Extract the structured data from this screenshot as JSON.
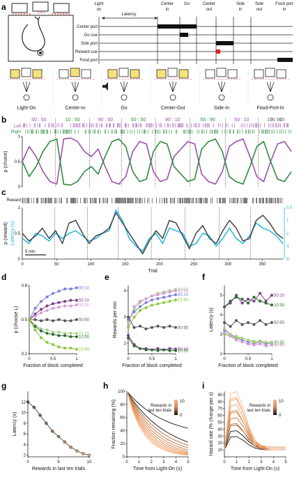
{
  "panels": {
    "a": "a",
    "b": "b",
    "c": "c",
    "d": "d",
    "e": "e",
    "f": "f",
    "g": "g",
    "h": "h",
    "i": "i"
  },
  "timeline": {
    "events": [
      "Light\non",
      "Latency",
      "Center\nin",
      "Go",
      "Center\nout",
      "Side\nin",
      "Side\nout",
      "Food port\nin"
    ],
    "rows": [
      "Center port",
      "Go cue",
      "Side port",
      "Reward cue",
      "Food port"
    ],
    "reward_color": "#e0211f"
  },
  "task_steps": [
    "Light-On",
    "Center-In",
    "Go",
    "Center-Out",
    "Side-In",
    "Food-Port-In"
  ],
  "panel_b": {
    "block_labels": [
      "50 : 50",
      "10 : 50",
      "90 : 50",
      "50 : 50",
      "90 : 10",
      "50 : 90",
      "50 : 10",
      "10 : 90",
      "90 : 10"
    ],
    "left_label": "Left",
    "right_label": "Right",
    "ylabel": "p (choice)",
    "yticks": [
      "1",
      "0.5",
      "0"
    ],
    "left_color": "#9c4fb0",
    "right_color": "#2e8b3e"
  },
  "panel_c": {
    "reward_label": "Reward",
    "ylabel_left": "p (reward)",
    "ylabel_right": "Latency (s)",
    "yticks_left": [
      "1",
      "0.5",
      "0"
    ],
    "yticks_right": [
      "0.5",
      "1",
      "2",
      "4",
      "8"
    ],
    "xlabel": "Trial",
    "xticks": [
      "0",
      "50",
      "100",
      "150",
      "200",
      "250",
      "300",
      "350"
    ],
    "scalebar": "5 min",
    "latency_color": "#1fb7e0",
    "preward_color": "#444444"
  },
  "chart_data": [
    {
      "panel": "d",
      "type": "line",
      "xlabel": "Fraction of block completed",
      "ylabel": "p (choose L)",
      "x": [
        0,
        0.125,
        0.25,
        0.375,
        0.5,
        0.625,
        0.75,
        0.875,
        1
      ],
      "ylim": [
        0.2,
        0.8
      ],
      "yticks": [
        "0.2",
        "0.5",
        "0.8"
      ],
      "xticks": [
        "0",
        "0.5",
        "1"
      ],
      "series": [
        {
          "name": "90:10",
          "color": "#7b7fd6",
          "values": [
            0.5,
            0.6,
            0.66,
            0.7,
            0.73,
            0.75,
            0.77,
            0.77,
            0.78
          ]
        },
        {
          "name": "50:10",
          "color": "#7a3d8c",
          "values": [
            0.5,
            0.55,
            0.59,
            0.62,
            0.64,
            0.65,
            0.66,
            0.67,
            0.67
          ]
        },
        {
          "name": "90:50",
          "color": "#d79ad9",
          "values": [
            0.5,
            0.53,
            0.56,
            0.58,
            0.6,
            0.61,
            0.62,
            0.62,
            0.63
          ]
        },
        {
          "name": "50:50",
          "color": "#555555",
          "values": [
            0.5,
            0.5,
            0.49,
            0.5,
            0.49,
            0.5,
            0.49,
            0.49,
            0.5
          ]
        },
        {
          "name": "50:90",
          "color": "#a8cf8a",
          "values": [
            0.5,
            0.45,
            0.42,
            0.41,
            0.39,
            0.39,
            0.38,
            0.38,
            0.38
          ]
        },
        {
          "name": "10:50",
          "color": "#2e6b2e",
          "values": [
            0.5,
            0.44,
            0.4,
            0.38,
            0.37,
            0.36,
            0.36,
            0.35,
            0.35
          ]
        },
        {
          "name": "10:90",
          "color": "#8cc63f",
          "values": [
            0.5,
            0.41,
            0.34,
            0.3,
            0.28,
            0.26,
            0.25,
            0.25,
            0.24
          ]
        }
      ]
    },
    {
      "panel": "e",
      "type": "line",
      "xlabel": "Fraction of block completed",
      "ylabel": "Rewards per min",
      "x": [
        0,
        0.125,
        0.25,
        0.375,
        0.5,
        0.625,
        0.75,
        0.875,
        1
      ],
      "ylim": [
        1.6,
        4.2
      ],
      "yticks": [
        "2",
        "3",
        "4"
      ],
      "xticks": [
        "0",
        "0.5",
        "1"
      ],
      "series": [
        {
          "name": "50:90",
          "color": "#a8cf8a",
          "values": [
            2.8,
            3.3,
            3.55,
            3.7,
            3.8,
            3.9,
            3.95,
            4.0,
            4.05
          ]
        },
        {
          "name": "90:50",
          "color": "#d79ad9",
          "values": [
            2.7,
            3.4,
            3.6,
            3.7,
            3.8,
            3.85,
            3.9,
            3.95,
            4.0
          ]
        },
        {
          "name": "90:10",
          "color": "#7b7fd6",
          "values": [
            2.9,
            3.2,
            3.4,
            3.55,
            3.65,
            3.7,
            3.75,
            3.8,
            3.85
          ]
        },
        {
          "name": "10:90",
          "color": "#8cc63f",
          "values": [
            2.6,
            3.0,
            3.25,
            3.35,
            3.45,
            3.5,
            3.55,
            3.6,
            3.65
          ]
        },
        {
          "name": "50:50",
          "color": "#555555",
          "values": [
            3.0,
            2.6,
            2.65,
            2.55,
            2.6,
            2.65,
            2.6,
            2.65,
            2.6
          ]
        },
        {
          "name": "50:10",
          "color": "#7a3d8c",
          "values": [
            2.3,
            1.95,
            1.8,
            1.8,
            1.75,
            1.8,
            1.75,
            1.8,
            1.78
          ]
        },
        {
          "name": "10:50",
          "color": "#2e6b2e",
          "values": [
            2.2,
            1.9,
            1.8,
            1.75,
            1.75,
            1.72,
            1.75,
            1.72,
            1.72
          ]
        }
      ]
    },
    {
      "panel": "f",
      "type": "line",
      "xlabel": "Fraction of block completed",
      "ylabel": "Latency (s)",
      "x": [
        0,
        0.125,
        0.25,
        0.375,
        0.5,
        0.625,
        0.75,
        0.875,
        1
      ],
      "ylim": [
        2,
        5.5
      ],
      "yticks": [
        "2",
        "3",
        "4",
        "5"
      ],
      "xticks": [
        "0",
        "0.5",
        "1"
      ],
      "series": [
        {
          "name": "50:10",
          "color": "#7a3d8c",
          "values": [
            4.4,
            4.6,
            5.0,
            4.6,
            4.8,
            4.7,
            5.1,
            4.7,
            5.0
          ]
        },
        {
          "name": "10:50",
          "color": "#2e6b2e",
          "values": [
            4.4,
            4.7,
            4.9,
            4.8,
            4.6,
            4.9,
            4.7,
            4.6,
            4.5
          ]
        },
        {
          "name": "50:50",
          "color": "#555555",
          "values": [
            3.6,
            3.4,
            3.7,
            3.5,
            3.6,
            3.5,
            3.7,
            3.5,
            3.6
          ]
        },
        {
          "name": "90:10",
          "color": "#7b7fd6",
          "values": [
            3.2,
            3.0,
            2.8,
            2.7,
            2.6,
            2.5,
            2.6,
            2.5,
            2.6
          ]
        },
        {
          "name": "10:90",
          "color": "#8cc63f",
          "values": [
            3.0,
            2.9,
            2.8,
            2.8,
            2.7,
            2.6,
            2.65,
            2.6,
            2.5
          ]
        },
        {
          "name": "50:90",
          "color": "#a8cf8a",
          "values": [
            3.3,
            3.0,
            2.9,
            2.8,
            2.7,
            2.65,
            2.6,
            2.6,
            2.6
          ]
        },
        {
          "name": "90:50",
          "color": "#d79ad9",
          "values": [
            3.1,
            2.9,
            2.7,
            2.6,
            2.5,
            2.45,
            2.5,
            2.4,
            2.45
          ]
        }
      ]
    },
    {
      "panel": "g",
      "type": "line",
      "xlabel": "Rewards in last ten trials",
      "ylabel": "Latency (s)",
      "x": [
        0,
        1,
        2,
        3,
        4,
        5,
        6,
        7,
        8,
        9,
        10
      ],
      "ylim": [
        1.7,
        14
      ],
      "yticks": [
        "2",
        "4",
        "6",
        "8",
        "10",
        "12"
      ],
      "xticks": [
        "0",
        "5",
        "10"
      ],
      "series": [
        {
          "values": [
            12,
            11,
            9.5,
            8,
            6.5,
            5.5,
            4.5,
            3.5,
            2.8,
            2.3,
            2.0
          ]
        }
      ]
    },
    {
      "panel": "h",
      "type": "line",
      "xlabel": "Time from Light-On (s)",
      "ylabel": "Fraction remaining (%)",
      "x": [
        0,
        0.5,
        1,
        1.5,
        2,
        2.5,
        3,
        3.5,
        4,
        4.5,
        5
      ],
      "ylim": [
        0,
        100
      ],
      "yticks": [
        "0",
        "20",
        "40",
        "60",
        "80",
        "100"
      ],
      "xticks": [
        "0",
        "1",
        "2",
        "3",
        "4",
        "5"
      ],
      "legend_title": "Rewards in\nlast ten trials",
      "legend_ticks": [
        "10",
        "0"
      ]
    },
    {
      "panel": "i",
      "type": "line",
      "xlabel": "Time from Light-On (s)",
      "ylabel": "Hazard rate (% change per s)",
      "x": [
        0,
        0.5,
        1,
        1.5,
        2,
        2.5,
        3,
        3.5,
        4,
        4.5,
        5
      ],
      "ylim": [
        0,
        95
      ],
      "yticks": [
        "10",
        "20",
        "30",
        "40",
        "50",
        "60",
        "70",
        "80",
        "90"
      ],
      "xticks": [
        "0",
        "1",
        "2",
        "3",
        "4",
        "5"
      ],
      "legend_title": "Rewards in\nlast ten trials",
      "legend_ticks": [
        "10",
        "0"
      ]
    }
  ]
}
